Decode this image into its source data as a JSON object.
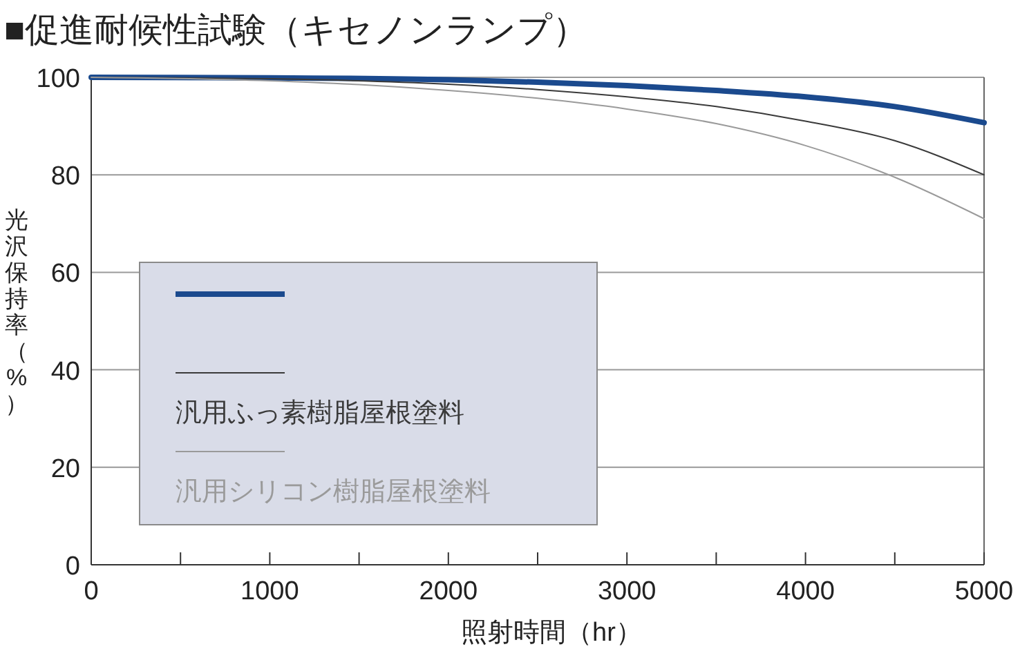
{
  "chart_data": {
    "type": "line",
    "title": "■促進耐候性試験（キセノンランプ）",
    "xlabel": "照射時間（hr）",
    "ylabel": "光沢保持率（%）",
    "xlim": [
      0,
      5000
    ],
    "ylim": [
      0,
      100
    ],
    "xticks": [
      0,
      {
        "value": 500,
        "label": null
      },
      1000,
      {
        "value": 1500,
        "label": null
      },
      2000,
      {
        "value": 2500,
        "label": null
      },
      3000,
      {
        "value": 3500,
        "label": null
      },
      4000,
      {
        "value": 4500,
        "label": null
      },
      5000
    ],
    "yticks": [
      0,
      20,
      40,
      60,
      80,
      100
    ],
    "grid": "y",
    "legend": "bottom left",
    "marker": "none",
    "line_style": "solid",
    "series": [
      {
        "color": "#1b4a8e",
        "x": [
          0,
          1000,
          2000,
          2500,
          3000,
          3500,
          4000,
          4500,
          5000
        ],
        "values": [
          100,
          99.9,
          99.5,
          99,
          98.3,
          97.3,
          96,
          94,
          90.7
        ]
      },
      {
        "name": "汎用ふっ素樹脂屋根塗料",
        "color": "#3a3a3a",
        "x": [
          0,
          1000,
          2000,
          2500,
          3000,
          3500,
          4000,
          4500,
          5000
        ],
        "values": [
          100,
          99.7,
          98.6,
          97.5,
          96,
          94,
          91,
          87,
          80
        ]
      },
      {
        "name": "汎用シリコン樹脂屋根塗料",
        "color": "#9a9a9a",
        "x": [
          0,
          1000,
          1500,
          2000,
          2500,
          3000,
          3500,
          4000,
          4500,
          5000
        ],
        "values": [
          100,
          99.3,
          98.5,
          97.3,
          95.7,
          93.5,
          90.5,
          86,
          79.5,
          71
        ]
      }
    ]
  }
}
